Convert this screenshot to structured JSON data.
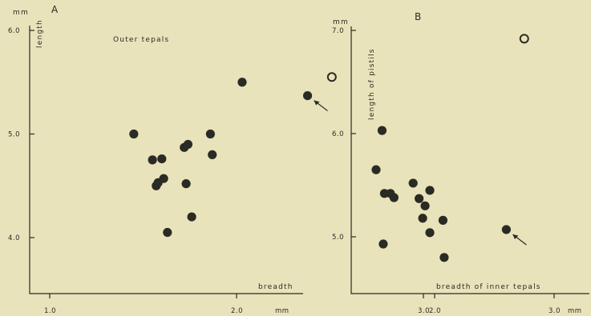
{
  "chart_data": [
    {
      "type": "scatter",
      "panel_label": "A",
      "title": "Outer  tepals",
      "xlabel": "breadth",
      "ylabel": "length",
      "y_unit": "mm",
      "x_unit": "mm",
      "xlim": [
        0.9,
        3.3
      ],
      "ylim": [
        3.5,
        6.1
      ],
      "x_ticks": [
        {
          "v": 1.0,
          "label": "1.0"
        },
        {
          "v": 2.0,
          "label": "2.0"
        },
        {
          "v": 3.0,
          "label": "3.0"
        }
      ],
      "y_ticks": [
        {
          "v": 4.0,
          "label": "4.0"
        },
        {
          "v": 5.0,
          "label": "5.0"
        },
        {
          "v": 6.0,
          "label": "6.0"
        }
      ],
      "x_unit_after_tick": "3.0",
      "points": [
        {
          "x": 1.45,
          "y": 5.0
        },
        {
          "x": 1.55,
          "y": 4.75
        },
        {
          "x": 1.6,
          "y": 4.76
        },
        {
          "x": 1.57,
          "y": 4.5
        },
        {
          "x": 1.58,
          "y": 4.53
        },
        {
          "x": 1.61,
          "y": 4.57
        },
        {
          "x": 1.63,
          "y": 4.05
        },
        {
          "x": 1.72,
          "y": 4.87
        },
        {
          "x": 1.74,
          "y": 4.9
        },
        {
          "x": 1.73,
          "y": 4.52
        },
        {
          "x": 1.76,
          "y": 4.2
        },
        {
          "x": 1.86,
          "y": 5.0
        },
        {
          "x": 1.87,
          "y": 4.8
        },
        {
          "x": 2.03,
          "y": 5.5
        },
        {
          "x": 2.38,
          "y": 5.37
        }
      ],
      "open_points": [
        {
          "x": 2.51,
          "y": 5.55
        }
      ],
      "arrow_point": {
        "x": 2.38,
        "y": 5.37
      }
    },
    {
      "type": "scatter",
      "panel_label": "B",
      "xlabel": "breadth  of  inner  tepals",
      "ylabel": "length  of  pistils",
      "y_unit": "mm",
      "x_unit": "mm",
      "xlim": [
        1.2,
        3.5
      ],
      "ylim": [
        4.55,
        7.1
      ],
      "x_ticks": [
        {
          "v": 2.0,
          "label": "2.0"
        },
        {
          "v": 3.0,
          "label": "3.0"
        }
      ],
      "y_ticks": [
        {
          "v": 5.0,
          "label": "5.0"
        },
        {
          "v": 6.0,
          "label": "6.0"
        },
        {
          "v": 7.0,
          "label": "7.0"
        }
      ],
      "x_unit_after_tick": "3.0",
      "points": [
        {
          "x": 1.51,
          "y": 5.65
        },
        {
          "x": 1.56,
          "y": 6.03
        },
        {
          "x": 1.58,
          "y": 5.42
        },
        {
          "x": 1.63,
          "y": 5.42
        },
        {
          "x": 1.66,
          "y": 5.38
        },
        {
          "x": 1.57,
          "y": 4.93
        },
        {
          "x": 1.82,
          "y": 5.52
        },
        {
          "x": 1.87,
          "y": 5.37
        },
        {
          "x": 1.92,
          "y": 5.3
        },
        {
          "x": 1.96,
          "y": 5.45
        },
        {
          "x": 1.9,
          "y": 5.18
        },
        {
          "x": 1.96,
          "y": 5.04
        },
        {
          "x": 2.07,
          "y": 5.16
        },
        {
          "x": 2.08,
          "y": 4.8
        },
        {
          "x": 2.6,
          "y": 5.07
        }
      ],
      "open_points": [
        {
          "x": 2.75,
          "y": 6.92
        }
      ],
      "arrow_point": {
        "x": 2.6,
        "y": 5.07
      }
    }
  ]
}
